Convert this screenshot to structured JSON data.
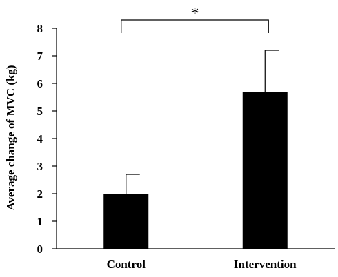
{
  "chart_data": {
    "type": "bar",
    "categories": [
      "Control",
      "Intervention"
    ],
    "values": [
      2.0,
      5.7
    ],
    "error_upper": [
      2.7,
      7.2
    ],
    "xlabel": "",
    "ylabel": "Average change of MVC (kg)",
    "ylim": [
      0,
      8
    ],
    "yticks": [
      "0",
      "1",
      "2",
      "3",
      "4",
      "5",
      "6",
      "7",
      "8"
    ],
    "significance": {
      "between": [
        "Control",
        "Intervention"
      ],
      "label": "*"
    },
    "bar_color": "#000000",
    "grid": false
  }
}
